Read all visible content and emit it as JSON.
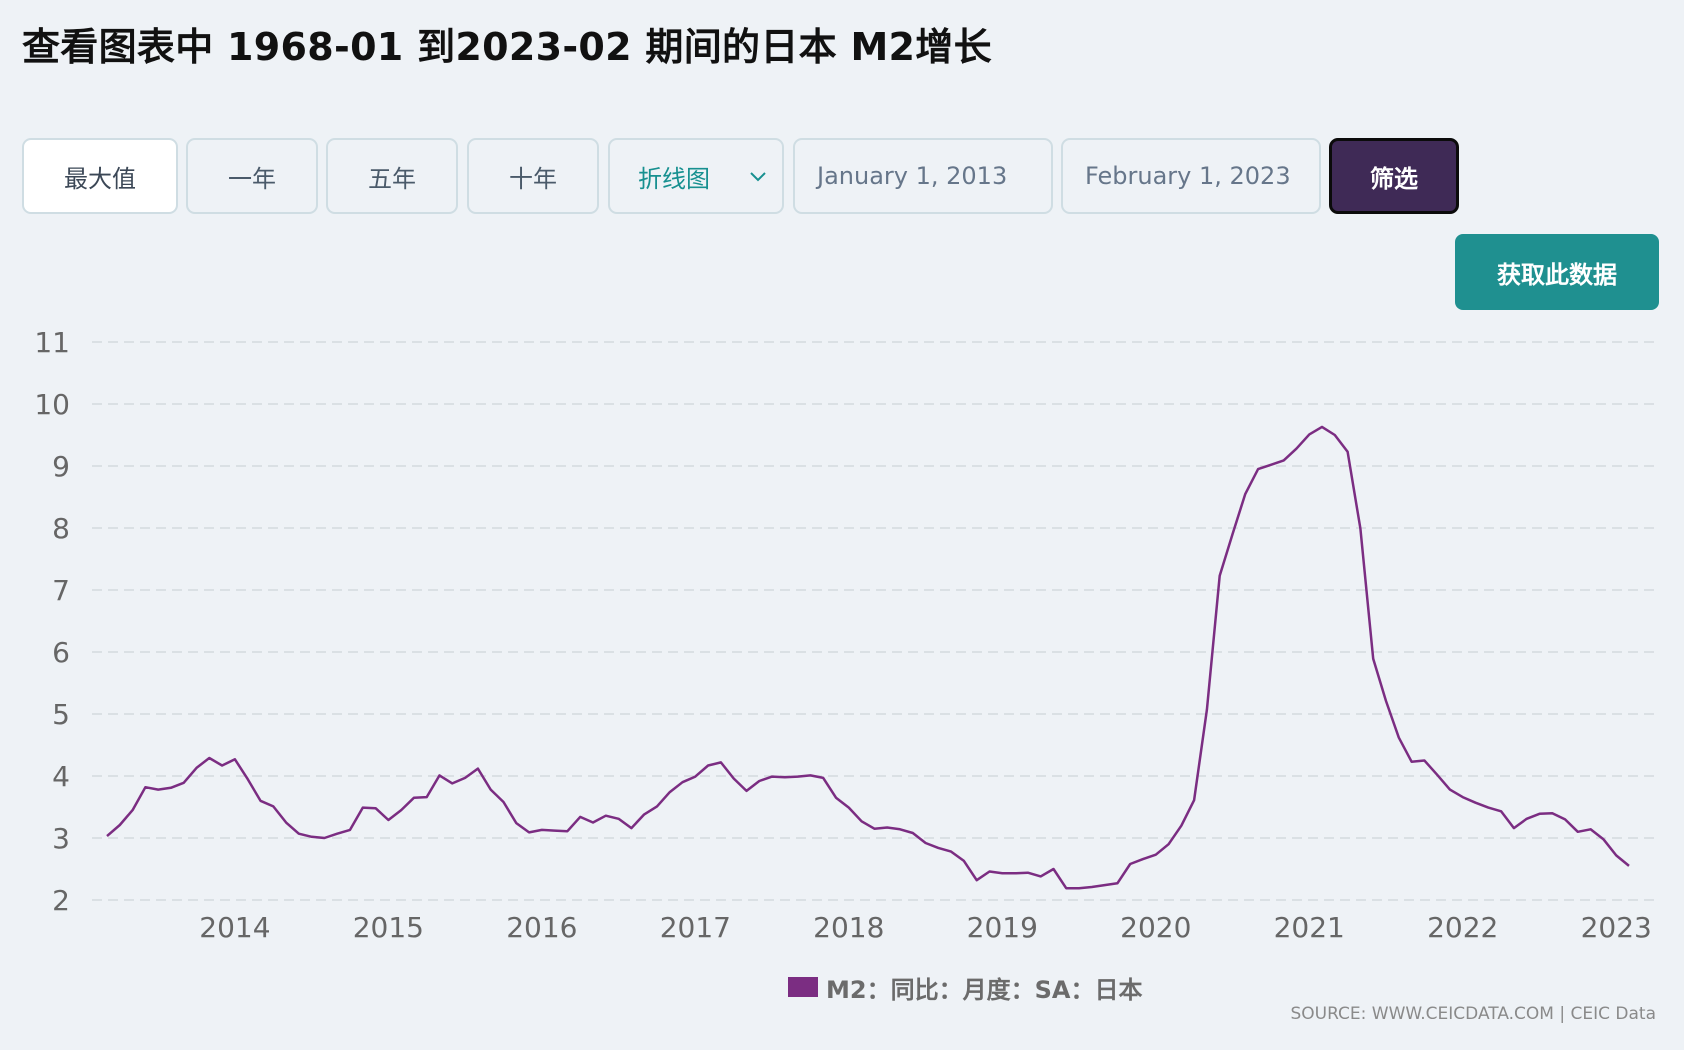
{
  "page": {
    "title": "查看图表中 1968-01 到2023-02 期间的日本 M2增长"
  },
  "toolbar": {
    "max_label": "最大值",
    "one_year_label": "一年",
    "five_year_label": "五年",
    "ten_year_label": "十年",
    "chart_type_selected": "折线图",
    "start_date": "January 1, 2013",
    "end_date": "February 1, 2023",
    "filter_label": "筛选"
  },
  "actions": {
    "get_data_label": "获取此数据"
  },
  "colors": {
    "series": "#7b2d82",
    "accent_teal": "#1f9090",
    "filter_button": "#3f2a56"
  },
  "icons": {
    "chart_type_chevron": "chevron-down-icon"
  },
  "legend": {
    "label": "M2：同比：月度：SA：日本"
  },
  "source": {
    "text": "SOURCE: WWW.CEICDATA.COM | CEIC Data"
  },
  "chart_data": {
    "type": "line",
    "title": "",
    "xlabel": "",
    "ylabel": "",
    "ylim": [
      2,
      11
    ],
    "yticks": [
      "2",
      "3",
      "4",
      "5",
      "6",
      "7",
      "8",
      "9",
      "10",
      "11"
    ],
    "xticks": [
      "2014",
      "2015",
      "2016",
      "2017",
      "2018",
      "2019",
      "2020",
      "2021",
      "2022",
      "2023"
    ],
    "grid": "horizontal dashed",
    "legend_position": "bottom-center",
    "x_start": "2013-03",
    "x_end": "2023-02",
    "series": [
      {
        "name": "M2：同比：月度：SA：日本",
        "x": [
          "2013-03",
          "2013-04",
          "2013-05",
          "2013-06",
          "2013-07",
          "2013-08",
          "2013-09",
          "2013-10",
          "2013-11",
          "2013-12",
          "2014-01",
          "2014-02",
          "2014-03",
          "2014-04",
          "2014-05",
          "2014-06",
          "2014-07",
          "2014-08",
          "2014-09",
          "2014-10",
          "2014-11",
          "2014-12",
          "2015-01",
          "2015-02",
          "2015-03",
          "2015-04",
          "2015-05",
          "2015-06",
          "2015-07",
          "2015-08",
          "2015-09",
          "2015-10",
          "2015-11",
          "2015-12",
          "2016-01",
          "2016-02",
          "2016-03",
          "2016-04",
          "2016-05",
          "2016-06",
          "2016-07",
          "2016-08",
          "2016-09",
          "2016-10",
          "2016-11",
          "2016-12",
          "2017-01",
          "2017-02",
          "2017-03",
          "2017-04",
          "2017-05",
          "2017-06",
          "2017-07",
          "2017-08",
          "2017-09",
          "2017-10",
          "2017-11",
          "2017-12",
          "2018-01",
          "2018-02",
          "2018-03",
          "2018-04",
          "2018-05",
          "2018-06",
          "2018-07",
          "2018-08",
          "2018-09",
          "2018-10",
          "2018-11",
          "2018-12",
          "2019-01",
          "2019-02",
          "2019-03",
          "2019-04",
          "2019-05",
          "2019-06",
          "2019-07",
          "2019-08",
          "2019-09",
          "2019-10",
          "2019-11",
          "2019-12",
          "2020-01",
          "2020-02",
          "2020-03",
          "2020-04",
          "2020-05",
          "2020-06",
          "2020-07",
          "2020-08",
          "2020-09",
          "2020-10",
          "2020-11",
          "2020-12",
          "2021-01",
          "2021-02",
          "2021-03",
          "2021-04",
          "2021-05",
          "2021-06",
          "2021-07",
          "2021-08",
          "2021-09",
          "2021-10",
          "2021-11",
          "2021-12",
          "2022-01",
          "2022-02",
          "2022-03",
          "2022-04",
          "2022-05",
          "2022-06",
          "2022-07",
          "2022-08",
          "2022-09",
          "2022-10",
          "2022-11",
          "2022-12",
          "2023-01",
          "2023-02"
        ],
        "values": [
          3.03,
          3.21,
          3.45,
          3.82,
          3.78,
          3.81,
          3.89,
          4.13,
          4.29,
          4.17,
          4.27,
          3.95,
          3.6,
          3.51,
          3.25,
          3.07,
          3.02,
          3.0,
          3.07,
          3.13,
          3.49,
          3.48,
          3.29,
          3.45,
          3.65,
          3.66,
          4.01,
          3.88,
          3.97,
          4.12,
          3.78,
          3.58,
          3.24,
          3.09,
          3.13,
          3.12,
          3.11,
          3.34,
          3.25,
          3.36,
          3.31,
          3.16,
          3.38,
          3.51,
          3.74,
          3.9,
          3.99,
          4.17,
          4.22,
          3.96,
          3.76,
          3.92,
          3.99,
          3.98,
          3.99,
          4.01,
          3.97,
          3.65,
          3.49,
          3.27,
          3.15,
          3.17,
          3.14,
          3.08,
          2.92,
          2.84,
          2.78,
          2.63,
          2.32,
          2.46,
          2.43,
          2.43,
          2.44,
          2.38,
          2.5,
          2.19,
          2.19,
          2.21,
          2.24,
          2.27,
          2.58,
          2.66,
          2.73,
          2.9,
          3.2,
          3.61,
          5.07,
          7.23,
          7.9,
          8.55,
          8.95,
          9.02,
          9.09,
          9.28,
          9.51,
          9.63,
          9.5,
          9.23,
          7.99,
          5.89,
          5.21,
          4.62,
          4.23,
          4.25,
          4.02,
          3.78,
          3.66,
          3.57,
          3.49,
          3.43,
          3.16,
          3.31,
          3.39,
          3.4,
          3.3,
          3.1,
          3.14,
          2.98,
          2.72,
          2.55
        ]
      }
    ]
  }
}
